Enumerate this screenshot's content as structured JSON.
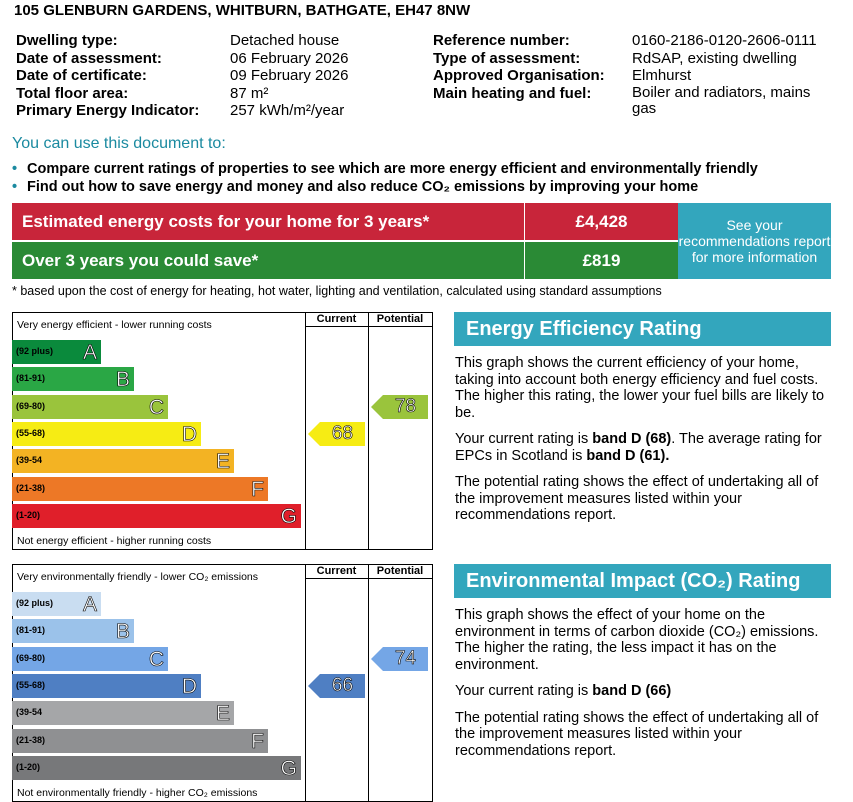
{
  "header": {
    "address": "105 GLENBURN GARDENS, WHITBURN, BATHGATE, EH47 8NW"
  },
  "details_left": [
    {
      "label": "Dwelling type:",
      "value": "Detached house"
    },
    {
      "label": "Date of assessment:",
      "value": "06 February 2026"
    },
    {
      "label": "Date of certificate:",
      "value": "09 February 2026"
    },
    {
      "label": "Total floor area:",
      "value": "87 m²"
    },
    {
      "label": "Primary Energy Indicator:",
      "value": "257 kWh/m²/year"
    }
  ],
  "details_right": [
    {
      "label": "Reference number:",
      "value": "0160-2186-0120-2606-0111"
    },
    {
      "label": "Type of assessment:",
      "value": "RdSAP, existing dwelling"
    },
    {
      "label": "Approved Organisation:",
      "value": "Elmhurst"
    },
    {
      "label": "Main heating and fuel:",
      "value": "Boiler and radiators, mains gas"
    }
  ],
  "usage": {
    "heading": "You can use this document to:",
    "bullets": [
      "Compare current ratings of properties to see which are more energy efficient and environmentally friendly",
      "Find out how to save energy and money and also reduce CO₂ emissions by improving your home"
    ]
  },
  "costs": {
    "estimate_label": "Estimated energy costs for your home for 3 years*",
    "estimate_value": "£4,428",
    "save_label": "Over 3 years you could save*",
    "save_value": "£819",
    "see_recommendations": "See your recommendations report for more information",
    "footnote": "* based upon the cost of energy for heating, hot water, lighting and ventilation, calculated using standard assumptions"
  },
  "energy_graph": {
    "col_current": "Current",
    "col_potential": "Potential",
    "top_caption": "Very energy efficient - lower running costs",
    "bottom_caption": "Not energy efficient - higher running costs",
    "bands": [
      {
        "range": "(92 plus)",
        "letter": "A",
        "color": "#0a8a3c"
      },
      {
        "range": "(81-91)",
        "letter": "B",
        "color": "#2aa745"
      },
      {
        "range": "(69-80)",
        "letter": "C",
        "color": "#9ac43c"
      },
      {
        "range": "(55-68)",
        "letter": "D",
        "color": "#f6ec14"
      },
      {
        "range": "(39-54",
        "letter": "E",
        "color": "#f3b323"
      },
      {
        "range": "(21-38)",
        "letter": "F",
        "color": "#ed7826"
      },
      {
        "range": "(1-20)",
        "letter": "G",
        "color": "#e01f2a"
      }
    ],
    "current": {
      "value": "68",
      "band_index": 3,
      "color": "#f6ec14"
    },
    "potential": {
      "value": "78",
      "band_index": 2,
      "color": "#9ac43c"
    }
  },
  "co2_graph": {
    "col_current": "Current",
    "col_potential": "Potential",
    "top_caption": "Very environmentally friendly - lower CO₂ emissions",
    "bottom_caption": "Not environmentally friendly - higher CO₂ emissions",
    "bands": [
      {
        "range": "(92 plus)",
        "letter": "A",
        "color": "#c9ddf1"
      },
      {
        "range": "(81-91)",
        "letter": "B",
        "color": "#9bc2ea"
      },
      {
        "range": "(69-80)",
        "letter": "C",
        "color": "#74a6e6"
      },
      {
        "range": "(55-68)",
        "letter": "D",
        "color": "#4f7fc3"
      },
      {
        "range": "(39-54",
        "letter": "E",
        "color": "#a5a6a8"
      },
      {
        "range": "(21-38)",
        "letter": "F",
        "color": "#8f9092"
      },
      {
        "range": "(1-20)",
        "letter": "G",
        "color": "#77787a"
      }
    ],
    "current": {
      "value": "66",
      "band_index": 3,
      "color": "#4f7fc3"
    },
    "potential": {
      "value": "74",
      "band_index": 2,
      "color": "#74a6e6"
    }
  },
  "energy_panel": {
    "title": "Energy Efficiency Rating",
    "p1": "This graph shows the current efficiency of your home, taking into account both energy efficiency and fuel costs. The higher this rating, the lower your fuel bills are likely to be.",
    "p2_pre": "Your current rating is ",
    "p2_bold1": "band D (68)",
    "p2_mid": ". The average rating for EPCs in Scotland is ",
    "p2_bold2": "band D (61).",
    "p3": "The potential rating shows the effect of undertaking all of the improvement measures listed within your recommendations report."
  },
  "co2_panel": {
    "title": "Environmental Impact (CO₂) Rating",
    "p1": "This graph shows the effect of your home on the environment in terms of carbon dioxide (CO₂) emissions. The higher the rating, the less impact it has on the environment.",
    "p2_pre": "Your current rating is ",
    "p2_bold1": "band D (66)",
    "p3": "The potential rating shows the effect of undertaking all of the improvement measures listed within your recommendations report."
  }
}
